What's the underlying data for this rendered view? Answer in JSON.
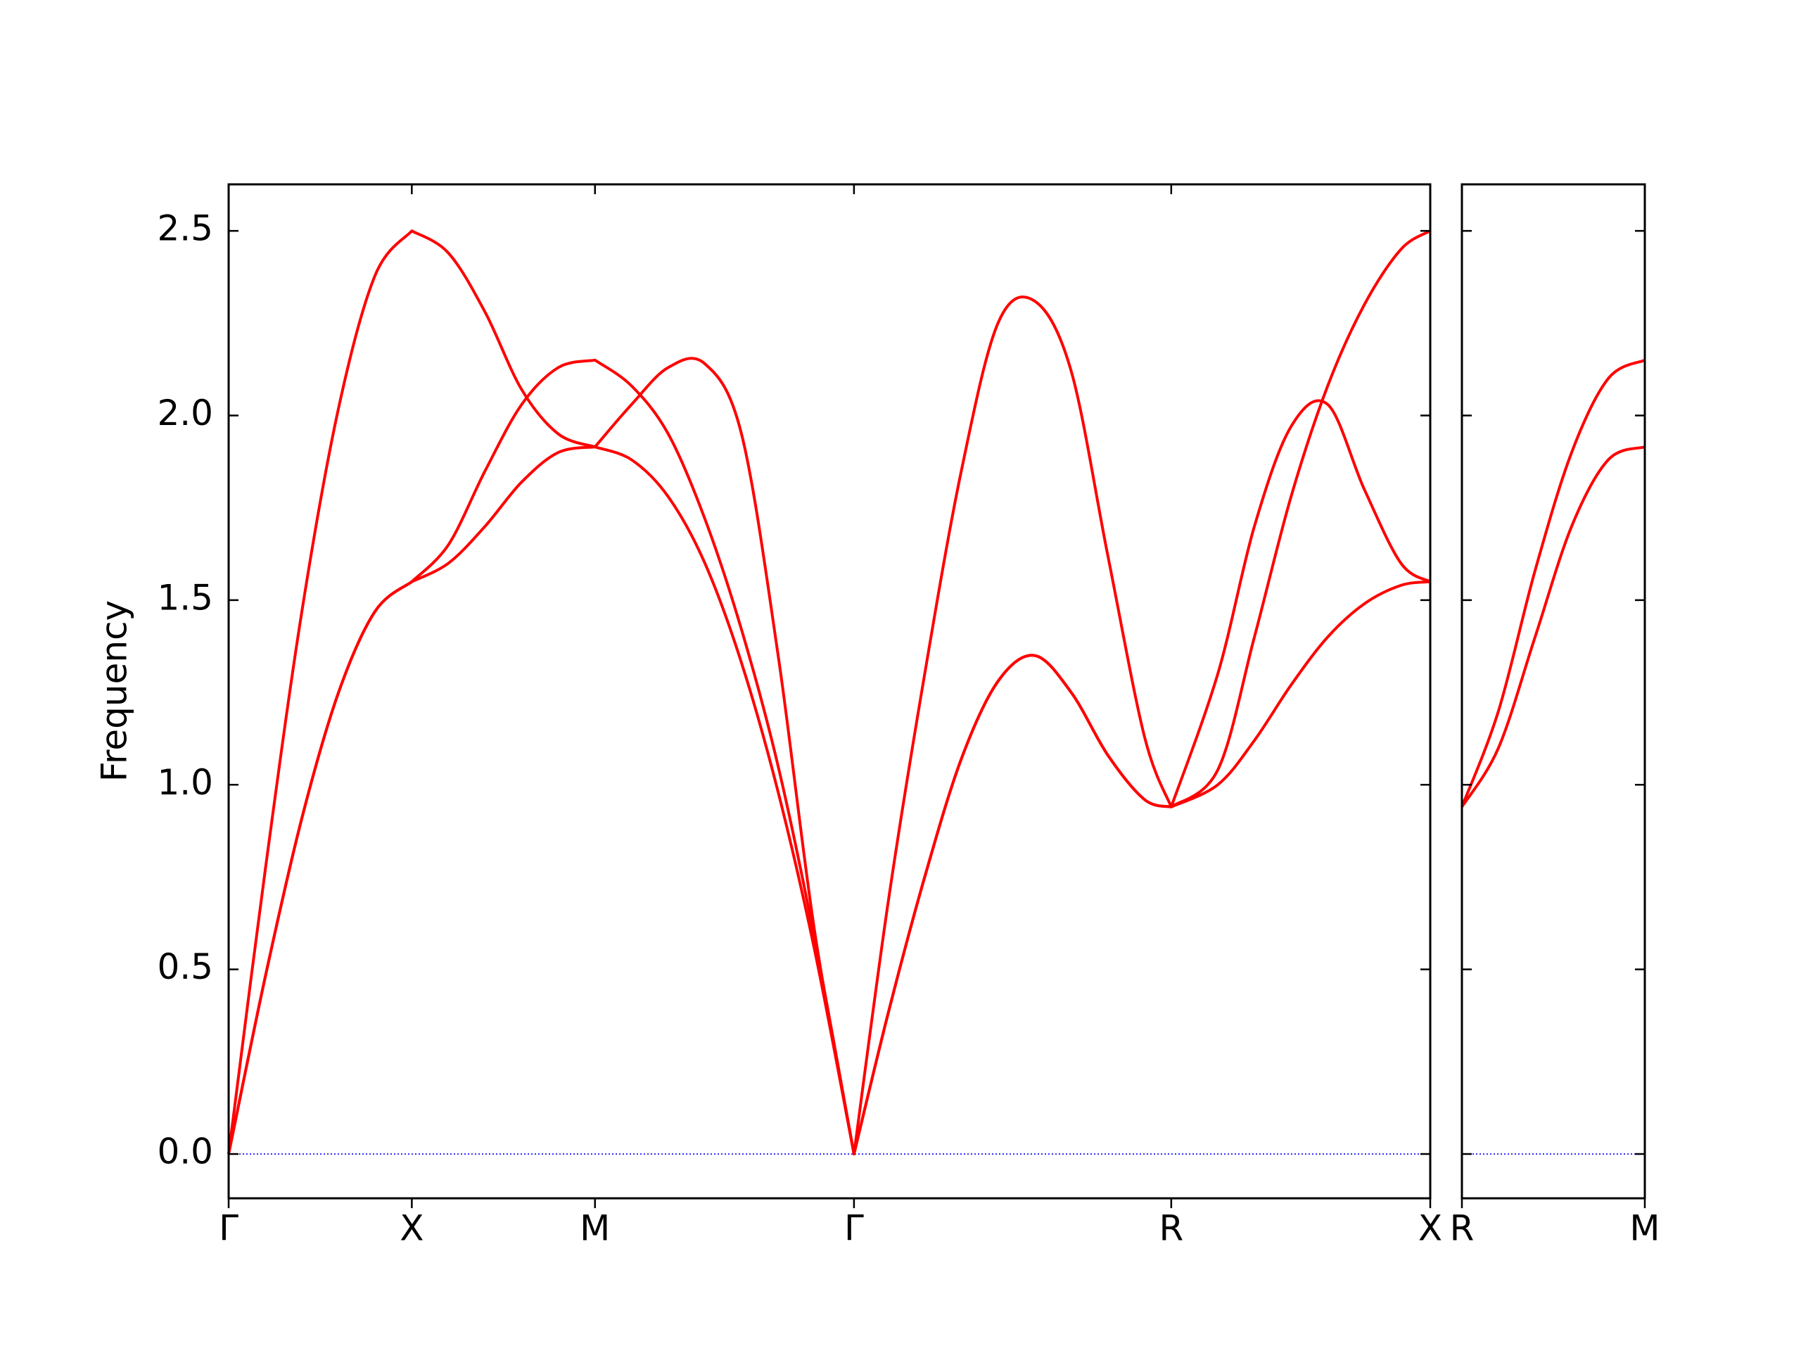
{
  "chart_data": [
    {
      "type": "line",
      "ylabel": "Frequency",
      "x": [
        0,
        0.1,
        0.2,
        0.3,
        0.4,
        0.5,
        0.6,
        0.7,
        0.8,
        0.9,
        1.0,
        1.1,
        1.2,
        1.3,
        1.4,
        1.5,
        1.6,
        1.707,
        1.8,
        1.9,
        2.0,
        2.1,
        2.2,
        2.3,
        2.4,
        2.5,
        2.573,
        2.7,
        2.8,
        2.9,
        3.0,
        3.1,
        3.2,
        3.28
      ],
      "series": [
        {
          "color": "#ff0000",
          "values": [
            0,
            0.77,
            1.47,
            2.02,
            2.38,
            2.5,
            2.44,
            2.28,
            2.07,
            1.95,
            1.915,
            2.03,
            2.13,
            2.14,
            1.95,
            1.35,
            0.6,
            0,
            0.68,
            1.3,
            1.85,
            2.25,
            2.31,
            2.12,
            1.62,
            1.13,
            0.94,
            1.3,
            1.7,
            1.97,
            2.03,
            1.8,
            1.6,
            1.55
          ]
        },
        {
          "color": "#ff0000",
          "values": [
            0,
            0.48,
            0.91,
            1.25,
            1.47,
            1.55,
            1.65,
            1.85,
            2.03,
            2.13,
            2.15,
            2.08,
            1.95,
            1.72,
            1.42,
            1.05,
            0.58,
            0,
            0.38,
            0.75,
            1.07,
            1.28,
            1.35,
            1.25,
            1.08,
            0.96,
            0.94,
            1.04,
            1.4,
            1.78,
            2.08,
            2.3,
            2.45,
            2.5
          ]
        },
        {
          "color": "#ff0000",
          "values": [
            0,
            0.48,
            0.91,
            1.25,
            1.47,
            1.55,
            1.6,
            1.7,
            1.82,
            1.9,
            1.915,
            1.88,
            1.78,
            1.6,
            1.33,
            0.98,
            0.55,
            0,
            0.38,
            0.75,
            1.07,
            1.28,
            1.35,
            1.25,
            1.08,
            0.96,
            0.94,
            1.0,
            1.12,
            1.27,
            1.4,
            1.49,
            1.54,
            1.55
          ]
        }
      ],
      "xlim": [
        0,
        3.28
      ],
      "xticks": [
        {
          "value": 0,
          "label": "Γ"
        },
        {
          "value": 0.5,
          "label": "X"
        },
        {
          "value": 1.0,
          "label": "M"
        },
        {
          "value": 1.707,
          "label": "Γ"
        },
        {
          "value": 2.573,
          "label": "R"
        },
        {
          "value": 3.28,
          "label": "X"
        }
      ],
      "ylim": [
        -0.12,
        2.626
      ],
      "yticks": [
        {
          "value": 0,
          "label": "0.0"
        },
        0.5,
        {
          "value": 1,
          "label": "1.0"
        },
        1.5,
        {
          "value": 2,
          "label": "2.0"
        },
        2.5
      ],
      "zero_line": true,
      "zero_line_color": "#0000ff"
    },
    {
      "type": "line",
      "sharey": true,
      "x": [
        0,
        0.1,
        0.2,
        0.3,
        0.4,
        0.5
      ],
      "series": [
        {
          "color": "#ff0000",
          "values": [
            0.94,
            1.2,
            1.58,
            1.9,
            2.1,
            2.15
          ]
        },
        {
          "color": "#ff0000",
          "values": [
            0.94,
            1.1,
            1.4,
            1.7,
            1.88,
            1.915
          ]
        }
      ],
      "xlim": [
        0,
        0.5
      ],
      "xticks": [
        {
          "value": 0,
          "label": "R"
        },
        {
          "value": 0.5,
          "label": "M"
        }
      ],
      "zero_line": true,
      "zero_line_color": "#0000ff"
    }
  ]
}
